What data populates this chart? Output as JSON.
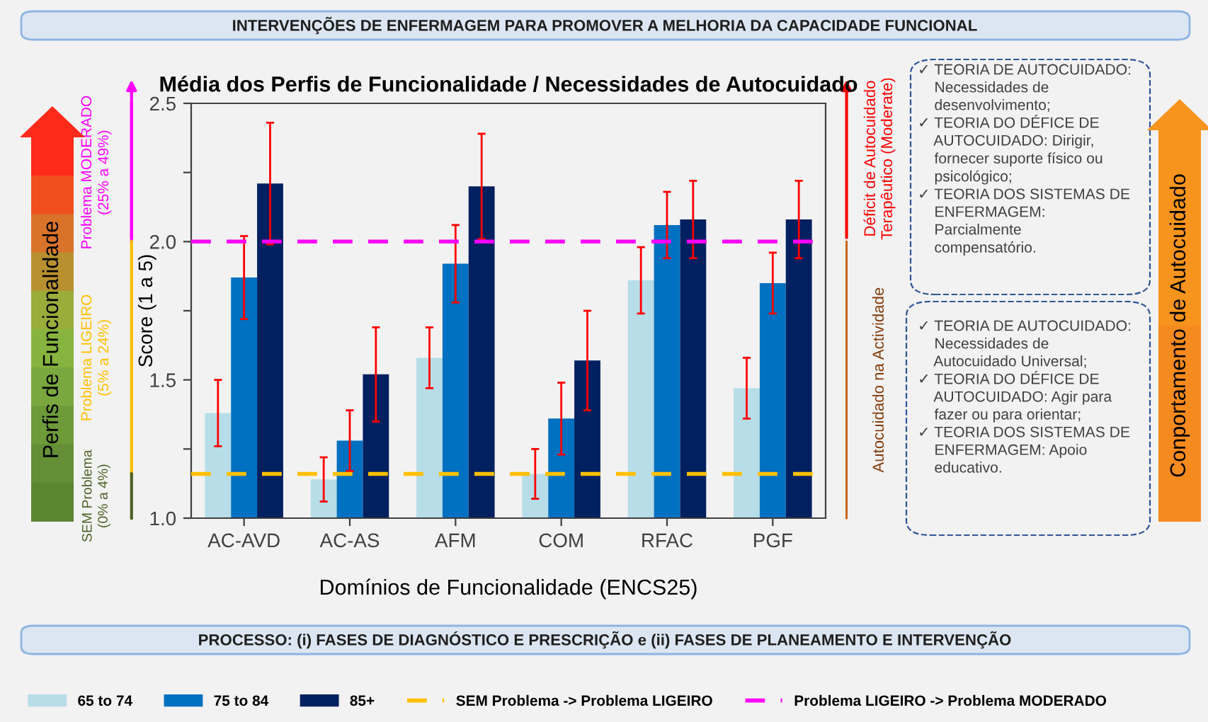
{
  "chart_data": {
    "type": "bar",
    "title": "Média dos Perfis de Funcionalidade / Necessidades de Autocuidado",
    "xlabel": "Domínios de Funcionalidade (ENCS25)",
    "ylabel": "Score (1 a 5)",
    "categories": [
      "AC-AVD",
      "AC-AS",
      "AFM",
      "COM",
      "RFAC",
      "PGF"
    ],
    "series": [
      {
        "name": "65 to 74",
        "color": "#b7dde8",
        "values": [
          1.38,
          1.14,
          1.58,
          1.16,
          1.86,
          1.47
        ],
        "errors": [
          0.12,
          0.08,
          0.11,
          0.09,
          0.12,
          0.11
        ]
      },
      {
        "name": "75 to 84",
        "color": "#0070c0",
        "values": [
          1.87,
          1.28,
          1.92,
          1.36,
          2.06,
          1.85
        ],
        "errors": [
          0.15,
          0.11,
          0.14,
          0.13,
          0.12,
          0.11
        ]
      },
      {
        "name": "85+",
        "color": "#002060",
        "values": [
          2.21,
          1.52,
          2.2,
          1.57,
          2.08,
          2.08
        ],
        "errors": [
          0.22,
          0.17,
          0.19,
          0.18,
          0.14,
          0.14
        ]
      }
    ],
    "ylim": [
      1.0,
      2.5
    ],
    "yticks": [
      {
        "value": 1.0,
        "label": "1.0"
      },
      {
        "value": 1.25,
        "label": null
      },
      1.5,
      {
        "value": 1.75,
        "label": null
      },
      {
        "value": 2.0,
        "label": "2.0"
      },
      {
        "value": 2.25,
        "label": null
      },
      2.5
    ],
    "ref_lines": [
      {
        "axis": "y",
        "value": 1.16,
        "label": "SEM Problema -> Problema LIGEIRO",
        "color": "#ffc000",
        "line_style": "dashed"
      },
      {
        "axis": "y",
        "value": 2.0,
        "label": "Problema LIGEIRO -> Problema MODERADO",
        "color": "#ff00ff",
        "line_style": "dashed"
      }
    ],
    "legend": "bottom",
    "grid": false,
    "annotations": [
      "INTERVENÇÕES DE ENFERMAGEM PARA PROMOVER A MELHORIA DA CAPACIDADE FUNCIONAL",
      "PROCESSO: (i) FASES DE DIAGNÓSTICO E PRESCRIÇÃO e (ii) FASES DE PLANEAMENTO E INTERVENÇÃO",
      "Perfis de Funcionalidade",
      "Conportamento de Autocuidado",
      "Problema MODERADO\n(25% a 49%)",
      "Problema LIGEIRO\n(5% a 24%)",
      "SEM Problema\n(0% a 4%)",
      "Déficit de Autocuidado\nTerapêutico (Moderate)",
      "Autocuidado na Actividade",
      "✓ TEORIA DE AUTOCUIDADO:\n    Necessidades de\n    desenvolvimento;\n✓ TEORIA DO DÉFICE DE\n    AUTOCUIDADO: Dirigir,\n    fornecer suporte físico ou\n    psicológico;\n✓ TEORIA DOS SISTEMAS DE\n    ENFERMAGEM:\n    Parcialmente\n    compensatório.",
      "✓ TEORIA DE AUTOCUIDADO:\n    Necessidades de\n    Autocuidado Universal;\n✓ TEORIA DO DÉFICE DE\n    AUTOCUIDADO: Agir para\n    fazer ou para orientar;\n✓ TEORIA DOS SISTEMAS DE\n    ENFERMAGEM: Apoio\n    educativo."
    ]
  }
}
